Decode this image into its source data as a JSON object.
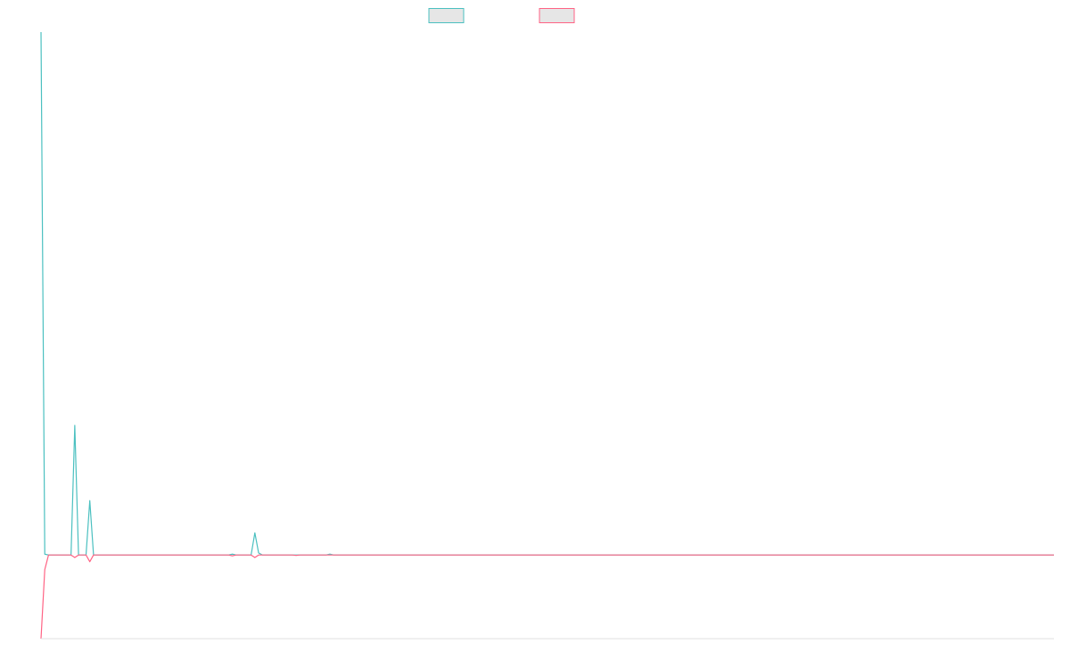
{
  "chart_data": {
    "type": "line",
    "title": "",
    "xlabel": "",
    "ylabel": "",
    "x_range": [
      0,
      270
    ],
    "ylim": [
      -20,
      125
    ],
    "grid": false,
    "legend_position": "top-center",
    "series": [
      {
        "color": "#4bc0c0",
        "fill": "#e6e6e6",
        "points": [
          [
            0,
            125
          ],
          [
            1,
            0.2
          ],
          [
            2,
            0
          ],
          [
            8,
            0
          ],
          [
            9,
            31
          ],
          [
            10,
            0
          ],
          [
            12,
            0
          ],
          [
            13,
            13
          ],
          [
            14,
            0
          ],
          [
            50,
            0
          ],
          [
            51,
            0.2
          ],
          [
            52,
            0
          ],
          [
            56,
            0
          ],
          [
            57,
            5.3
          ],
          [
            58,
            0.5
          ],
          [
            59,
            0
          ],
          [
            76,
            0
          ],
          [
            77,
            0.2
          ],
          [
            78,
            0
          ],
          [
            270,
            0
          ]
        ]
      },
      {
        "color": "#ff6384",
        "fill": "#e6e6e6",
        "points": [
          [
            0,
            -20
          ],
          [
            1,
            -3.5
          ],
          [
            2,
            0
          ],
          [
            8,
            0
          ],
          [
            9,
            -0.6
          ],
          [
            10,
            0
          ],
          [
            12,
            0
          ],
          [
            13,
            -1.6
          ],
          [
            14,
            0
          ],
          [
            50,
            0
          ],
          [
            51,
            -0.2
          ],
          [
            52,
            0
          ],
          [
            56,
            0
          ],
          [
            57,
            -0.6
          ],
          [
            58,
            0
          ],
          [
            67,
            0
          ],
          [
            68,
            -0.1
          ],
          [
            69,
            0
          ],
          [
            270,
            0
          ]
        ]
      }
    ]
  }
}
